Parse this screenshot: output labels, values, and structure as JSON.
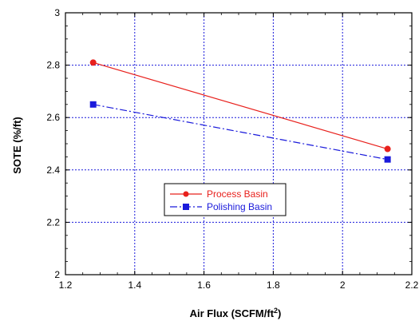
{
  "chart_data": {
    "type": "line",
    "xlabel": "Air Flux (SCFM/ft",
    "xlabel_sup": "2",
    "xlabel_close": ")",
    "ylabel": "SOTE (%/ft)",
    "xlim": [
      1.2,
      2.2
    ],
    "ylim": [
      2,
      3
    ],
    "xticks": [
      1.2,
      1.4,
      1.6,
      1.8,
      2,
      2.2
    ],
    "yticks": [
      2,
      2.2,
      2.4,
      2.6,
      2.8,
      3
    ],
    "xtick_labels": [
      "1.2",
      "1.4",
      "1.6",
      "1.8",
      "2",
      "2.2"
    ],
    "ytick_labels": [
      "2",
      "2.2",
      "2.4",
      "2.6",
      "2.8",
      "3"
    ],
    "grid": true,
    "legend_placement": "center-bottom",
    "series": [
      {
        "name": "Process Basin",
        "color": "#e8201c",
        "marker": "circle",
        "line_style": "solid",
        "x": [
          1.28,
          2.13
        ],
        "y": [
          2.81,
          2.48
        ]
      },
      {
        "name": "Polishing Basin",
        "color": "#1a1adb",
        "marker": "square",
        "line_style": "dash-dot",
        "x": [
          1.28,
          2.13
        ],
        "y": [
          2.65,
          2.44
        ]
      }
    ]
  }
}
